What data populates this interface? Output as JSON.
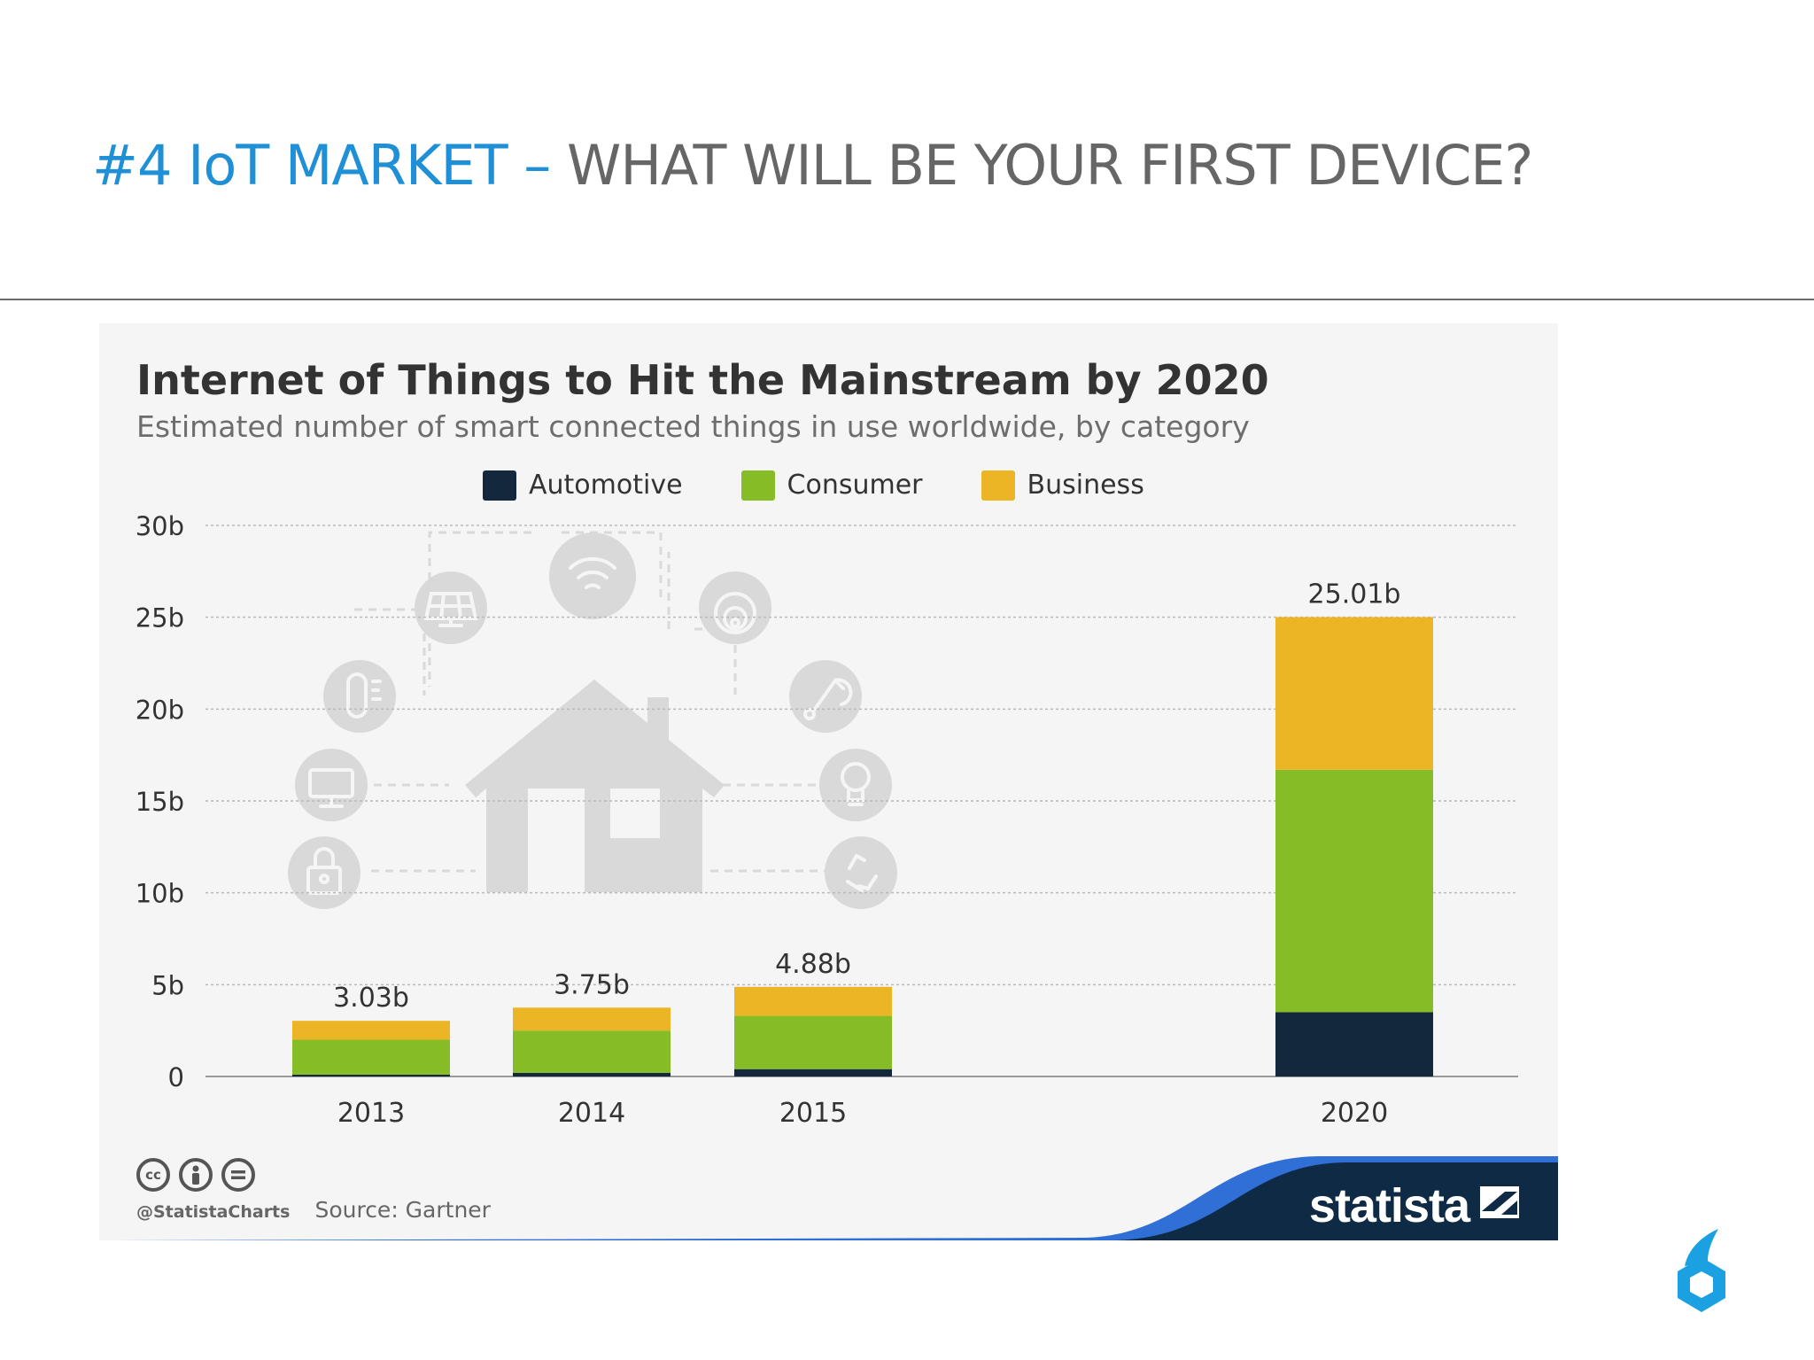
{
  "slide": {
    "title_accent": "#4 IoT MARKET –",
    "title_rest": " WHAT WILL BE YOUR FIRST DEVICE?"
  },
  "colors": {
    "accent": "#1f8fd6",
    "automotive": "#13273d",
    "consumer": "#86bc25",
    "business": "#ebb526",
    "brand_navy": "#0f2a44",
    "brand_blue": "#2f6fd6"
  },
  "icons": [
    "solar-panel-icon",
    "wifi-icon",
    "smoke-detector-icon",
    "thermometer-icon",
    "music-note-icon",
    "monitor-icon",
    "light-bulb-icon",
    "padlock-icon",
    "recycle-icon",
    "house-icon"
  ],
  "chart_data": {
    "type": "bar",
    "stacked": true,
    "title": "Internet of Things to Hit the Mainstream by 2020",
    "subtitle": "Estimated number of smart connected things in use worldwide, by category",
    "categories": [
      "2013",
      "2014",
      "2015",
      "2020"
    ],
    "series": [
      {
        "name": "Automotive",
        "values": [
          0.1,
          0.2,
          0.4,
          3.5
        ]
      },
      {
        "name": "Consumer",
        "values": [
          1.9,
          2.3,
          2.9,
          13.2
        ]
      },
      {
        "name": "Business",
        "values": [
          1.03,
          1.25,
          1.58,
          8.31
        ]
      }
    ],
    "totals": [
      3.03,
      3.75,
      4.88,
      25.01
    ],
    "total_labels": [
      "3.03b",
      "3.75b",
      "4.88b",
      "25.01b"
    ],
    "ylim": [
      0,
      30
    ],
    "yticks": [
      0,
      5,
      10,
      15,
      20,
      25,
      30
    ],
    "ytick_labels": [
      "0",
      "5b",
      "10b",
      "15b",
      "20b",
      "25b",
      "30b"
    ],
    "grid": true,
    "legend": "top-center",
    "source": "Source: Gartner",
    "credit": "@StatistaCharts",
    "brand": "statista"
  }
}
